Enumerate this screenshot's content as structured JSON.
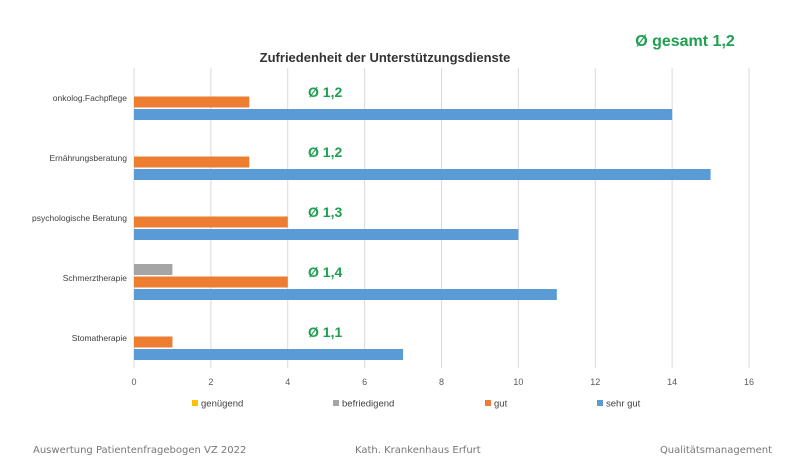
{
  "overall_label": "Ø gesamt 1,2",
  "footer": {
    "left": "Auswertung Patientenfragebogen VZ 2022",
    "center": "Kath. Krankenhaus Erfurt",
    "right": "Qualitätsmanagement"
  },
  "chart_data": {
    "type": "bar",
    "orientation": "horizontal",
    "title": "Zufriedenheit der Unterstützungsdienste",
    "categories": [
      "onkolog.Fachpflege",
      "Ernährungsberatung",
      "psychologische Beratung",
      "Schmerztherapie",
      "Stomatherapie"
    ],
    "series": [
      {
        "name": "genügend",
        "color": "#ffc000",
        "values": [
          0,
          0,
          0,
          0,
          0
        ]
      },
      {
        "name": "befriedigend",
        "color": "#a5a5a5",
        "values": [
          0,
          0,
          0,
          1,
          0
        ]
      },
      {
        "name": "gut",
        "color": "#ed7d31",
        "values": [
          3,
          3,
          4,
          4,
          1
        ]
      },
      {
        "name": "sehr gut",
        "color": "#5b9bd5",
        "values": [
          14,
          15,
          10,
          11,
          7
        ]
      }
    ],
    "annotations": [
      "Ø 1,2",
      "Ø 1,2",
      "Ø 1,3",
      "Ø 1,4",
      "Ø 1,1"
    ],
    "annotation_color": "#1ea050",
    "xlim": [
      0,
      16
    ],
    "xticks": [
      0,
      2,
      4,
      6,
      8,
      10,
      12,
      14,
      16
    ],
    "grid": true,
    "legend_position": "bottom"
  }
}
